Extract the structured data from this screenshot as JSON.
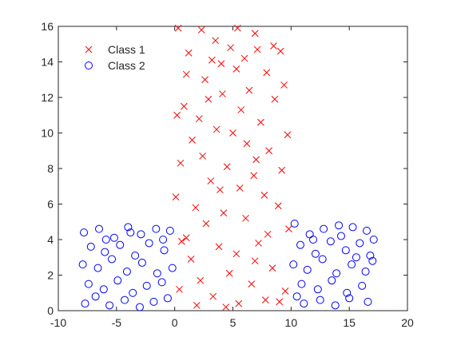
{
  "chart_data": {
    "type": "scatter",
    "xlim": [
      -10,
      20
    ],
    "xticks": [
      -10,
      -5,
      0,
      5,
      10,
      15,
      20
    ],
    "ylim": [
      0,
      16
    ],
    "yticks": [
      0,
      2,
      4,
      6,
      8,
      10,
      12,
      14,
      16
    ],
    "legend": "upper-left",
    "grid": false,
    "series": [
      {
        "name": "Class 1",
        "color": "#ff0000",
        "marker": "x",
        "x": [
          0.3,
          5.4,
          2.3,
          8.5,
          7.1,
          6.9,
          3.5,
          1.2,
          4.8,
          9.1,
          1.0,
          3.2,
          5.3,
          2.6,
          7.9,
          9.4,
          6.4,
          0.8,
          4.1,
          8.6,
          0.2,
          2.1,
          5.7,
          7.4,
          9.7,
          3.6,
          1.5,
          6.2,
          8.1,
          0.5,
          2.4,
          4.5,
          6.8,
          9.2,
          3.1,
          5.6,
          7.7,
          0.1,
          1.8,
          4.2,
          8.9,
          6.1,
          2.7,
          9.8,
          0.6,
          3.8,
          5.3,
          7.2,
          1.4,
          8.4,
          4.7,
          2.2,
          6.6,
          9.5,
          0.4,
          3.3,
          5.5,
          7.8,
          1.9,
          9.0,
          4.0,
          6.0,
          2.9,
          5.0,
          7.0,
          3.9,
          8.0,
          1.0,
          6.9,
          4.4
        ],
        "values": [
          15.9,
          15.9,
          15.8,
          14.9,
          14.7,
          15.6,
          15.2,
          14.5,
          14.8,
          14.6,
          13.3,
          14.1,
          13.6,
          13.0,
          13.4,
          12.7,
          12.4,
          11.5,
          12.2,
          11.9,
          11.0,
          10.8,
          11.3,
          10.6,
          9.9,
          10.2,
          9.6,
          9.4,
          9.0,
          8.3,
          8.7,
          8.1,
          7.6,
          7.9,
          7.3,
          6.9,
          6.5,
          6.4,
          5.8,
          5.5,
          5.9,
          5.2,
          4.9,
          4.6,
          3.9,
          3.6,
          3.2,
          3.8,
          2.9,
          2.4,
          2.1,
          1.7,
          1.5,
          1.1,
          1.2,
          0.8,
          0.4,
          0.6,
          0.3,
          0.5,
          13.9,
          14.2,
          11.9,
          10.0,
          8.5,
          6.8,
          4.3,
          4.1,
          2.8,
          0.2
        ]
      },
      {
        "name": "Class 2",
        "color": "#0000ff",
        "marker": "o",
        "x": [
          -7.8,
          -6.5,
          -5.2,
          -4.0,
          -2.9,
          -1.6,
          -0.4,
          -7.2,
          -6.0,
          -4.7,
          -3.4,
          -2.2,
          -0.9,
          -7.9,
          -6.6,
          -5.4,
          -4.1,
          -2.8,
          -1.5,
          -0.2,
          -7.4,
          -6.1,
          -4.9,
          -3.6,
          -2.4,
          -1.1,
          -7.7,
          -6.8,
          -5.6,
          -4.3,
          -3.0,
          -1.8,
          -0.6,
          -5.9,
          -3.8,
          -1.0,
          10.3,
          11.6,
          12.8,
          14.1,
          15.3,
          16.5,
          17.1,
          10.8,
          12.1,
          13.4,
          14.7,
          15.9,
          16.8,
          10.2,
          11.4,
          12.7,
          13.9,
          15.2,
          16.4,
          17.0,
          10.9,
          12.3,
          13.5,
          14.8,
          16.1,
          11.1,
          12.5,
          13.8,
          15.0,
          16.6,
          10.5,
          14.3,
          11.9,
          15.6
        ],
        "values": [
          4.4,
          4.6,
          4.1,
          4.7,
          4.3,
          4.6,
          4.5,
          3.6,
          3.3,
          3.7,
          3.1,
          3.8,
          3.4,
          2.6,
          2.4,
          2.9,
          2.2,
          2.7,
          2.1,
          2.4,
          1.5,
          1.2,
          1.7,
          1.0,
          1.4,
          1.6,
          0.4,
          0.8,
          0.3,
          0.6,
          0.2,
          0.5,
          0.7,
          4.0,
          4.4,
          4.0,
          4.9,
          4.3,
          4.6,
          4.8,
          4.7,
          4.5,
          4.0,
          3.7,
          3.2,
          3.9,
          3.4,
          3.8,
          3.1,
          2.6,
          2.3,
          2.9,
          2.1,
          2.6,
          2.2,
          2.8,
          1.5,
          1.2,
          1.7,
          1.0,
          1.4,
          0.4,
          0.6,
          0.3,
          0.7,
          0.5,
          0.8,
          4.2,
          4.0,
          3.0
        ]
      }
    ]
  }
}
